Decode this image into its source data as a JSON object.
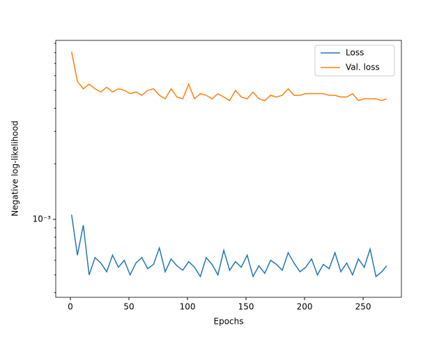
{
  "chart_data": {
    "type": "line",
    "log_y": true,
    "xlabel": "Epochs",
    "ylabel": "Negative log-likelihood",
    "x": [
      1,
      6,
      11,
      16,
      21,
      26,
      31,
      36,
      41,
      46,
      51,
      56,
      61,
      66,
      71,
      76,
      81,
      86,
      91,
      96,
      101,
      106,
      111,
      116,
      121,
      126,
      131,
      136,
      141,
      146,
      151,
      156,
      161,
      166,
      171,
      176,
      181,
      186,
      191,
      196,
      201,
      206,
      211,
      216,
      221,
      226,
      231,
      236,
      241,
      246,
      251,
      256,
      261,
      266,
      270
    ],
    "series": [
      {
        "name": "Loss",
        "color": "#1f77b4",
        "values": [
          0.00106,
          0.00064,
          0.00093,
          0.0005,
          0.00062,
          0.00058,
          0.00052,
          0.00064,
          0.00055,
          0.0006,
          0.0005,
          0.00058,
          0.00062,
          0.00054,
          0.00057,
          0.0007,
          0.00052,
          0.00061,
          0.00056,
          0.00053,
          0.00059,
          0.00055,
          0.00049,
          0.00062,
          0.00057,
          0.0005,
          0.00068,
          0.00053,
          0.00059,
          0.00055,
          0.00064,
          0.00049,
          0.00056,
          0.00051,
          0.0006,
          0.00057,
          0.00053,
          0.00066,
          0.00058,
          0.00052,
          0.00055,
          0.00061,
          0.0005,
          0.00057,
          0.00054,
          0.00066,
          0.00052,
          0.00058,
          0.0005,
          0.00061,
          0.00055,
          0.00069,
          0.00049,
          0.00052,
          0.00056
        ]
      },
      {
        "name": "Val. loss",
        "color": "#ff7f0e",
        "values": [
          0.0081,
          0.0056,
          0.0051,
          0.0054,
          0.0051,
          0.0049,
          0.0052,
          0.0049,
          0.0051,
          0.005,
          0.0048,
          0.0049,
          0.0047,
          0.005,
          0.0051,
          0.0047,
          0.0045,
          0.0051,
          0.0046,
          0.0045,
          0.0054,
          0.0045,
          0.0048,
          0.0047,
          0.0045,
          0.0048,
          0.0046,
          0.0044,
          0.005,
          0.0046,
          0.0045,
          0.0049,
          0.0045,
          0.0044,
          0.0047,
          0.0046,
          0.0047,
          0.0051,
          0.0047,
          0.0047,
          0.0048,
          0.0048,
          0.0048,
          0.0048,
          0.0047,
          0.0047,
          0.0046,
          0.0046,
          0.0048,
          0.0044,
          0.0045,
          0.0045,
          0.0045,
          0.0044,
          0.0045
        ]
      }
    ],
    "xlim": [
      -12.5,
      282.7
    ],
    "xticks": [
      0,
      50,
      100,
      150,
      200,
      250
    ],
    "ylim": [
      0.000378,
      0.00933
    ],
    "yticks": [
      {
        "value": 0.001,
        "label": "10⁻³"
      }
    ],
    "yminorticks": [
      0.0004,
      0.0005,
      0.0006,
      0.0007,
      0.0008,
      0.0009,
      0.002,
      0.003,
      0.004,
      0.005,
      0.006,
      0.007,
      0.008,
      0.009
    ],
    "legend": "upper right"
  }
}
